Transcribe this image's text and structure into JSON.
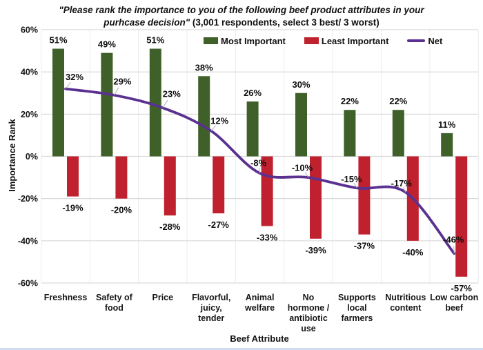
{
  "title": {
    "quoted": "\"Please rank the importance to you of the following beef product attributes in your purhcase decision\"",
    "rest": " (3,001 respondents, select 3 best/ 3 worst)"
  },
  "legend": {
    "most_important": "Most Important",
    "least_important": "Least Important",
    "net": "Net"
  },
  "axes": {
    "y_title": "Importance Rank",
    "x_title": "Beef Attribute"
  },
  "colors": {
    "most_important": "#40602a",
    "least_important": "#c0212e",
    "net": "#5a3191",
    "gridline": "#d9d9d9",
    "vgridline": "#ececec",
    "leader": "#b3b3b3"
  },
  "chart_data": {
    "type": "bar",
    "subtype": "clustered bars with overlaid smoothed line (combo)",
    "title": "\"Please rank the importance to you of the following beef product attributes in your purhcase decision\" (3,001 respondents, select 3 best/ 3 worst)",
    "xlabel": "Beef Attribute",
    "ylabel": "Importance Rank",
    "ylim": [
      -60,
      60
    ],
    "yticks": [
      60,
      40,
      20,
      0,
      -20,
      -40,
      -60
    ],
    "ytick_labels": [
      "60%",
      "40%",
      "20%",
      "0%",
      "-20%",
      "-40%",
      "-60%"
    ],
    "grid": true,
    "legend_position": "top-center",
    "categories": [
      {
        "label": "Freshness",
        "lines": [
          "Freshness"
        ]
      },
      {
        "label": "Safety of food",
        "lines": [
          "Safety of",
          "food"
        ]
      },
      {
        "label": "Price",
        "lines": [
          "Price"
        ]
      },
      {
        "label": "Flavorful, juicy, tender",
        "lines": [
          "Flavorful,",
          "juicy,",
          "tender"
        ]
      },
      {
        "label": "Animal welfare",
        "lines": [
          "Animal",
          "welfare"
        ]
      },
      {
        "label": "No hormone / antibiotic use",
        "lines": [
          "No",
          "hormone /",
          "antibiotic",
          "use"
        ]
      },
      {
        "label": "Supports local farmers",
        "lines": [
          "Supports",
          "local",
          "farmers"
        ]
      },
      {
        "label": "Nutritious content",
        "lines": [
          "Nutritious",
          "content"
        ]
      },
      {
        "label": "Low carbon beef",
        "lines": [
          "Low carbon",
          "beef"
        ]
      }
    ],
    "series": [
      {
        "name": "Most Important",
        "type": "bar",
        "color": "#40602a",
        "values": [
          51,
          49,
          51,
          38,
          26,
          30,
          22,
          22,
          11
        ],
        "labels": [
          "51%",
          "49%",
          "51%",
          "38%",
          "26%",
          "30%",
          "22%",
          "22%",
          "11%"
        ]
      },
      {
        "name": "Least Important",
        "type": "bar",
        "color": "#c0212e",
        "values": [
          -19,
          -20,
          -28,
          -27,
          -33,
          -39,
          -37,
          -40,
          -57
        ],
        "labels": [
          "-19%",
          "-20%",
          "-28%",
          "-27%",
          "-33%",
          "-39%",
          "-37%",
          "-40%",
          "-57%"
        ]
      },
      {
        "name": "Net",
        "type": "line",
        "color": "#5a3191",
        "values": [
          32,
          29,
          23,
          12,
          -8,
          -10,
          -15,
          -17,
          -46
        ],
        "labels": [
          "32%",
          "29%",
          "23%",
          "12%",
          "-8%",
          "-10%",
          "-15%",
          "-17%",
          "-46%"
        ]
      }
    ]
  }
}
